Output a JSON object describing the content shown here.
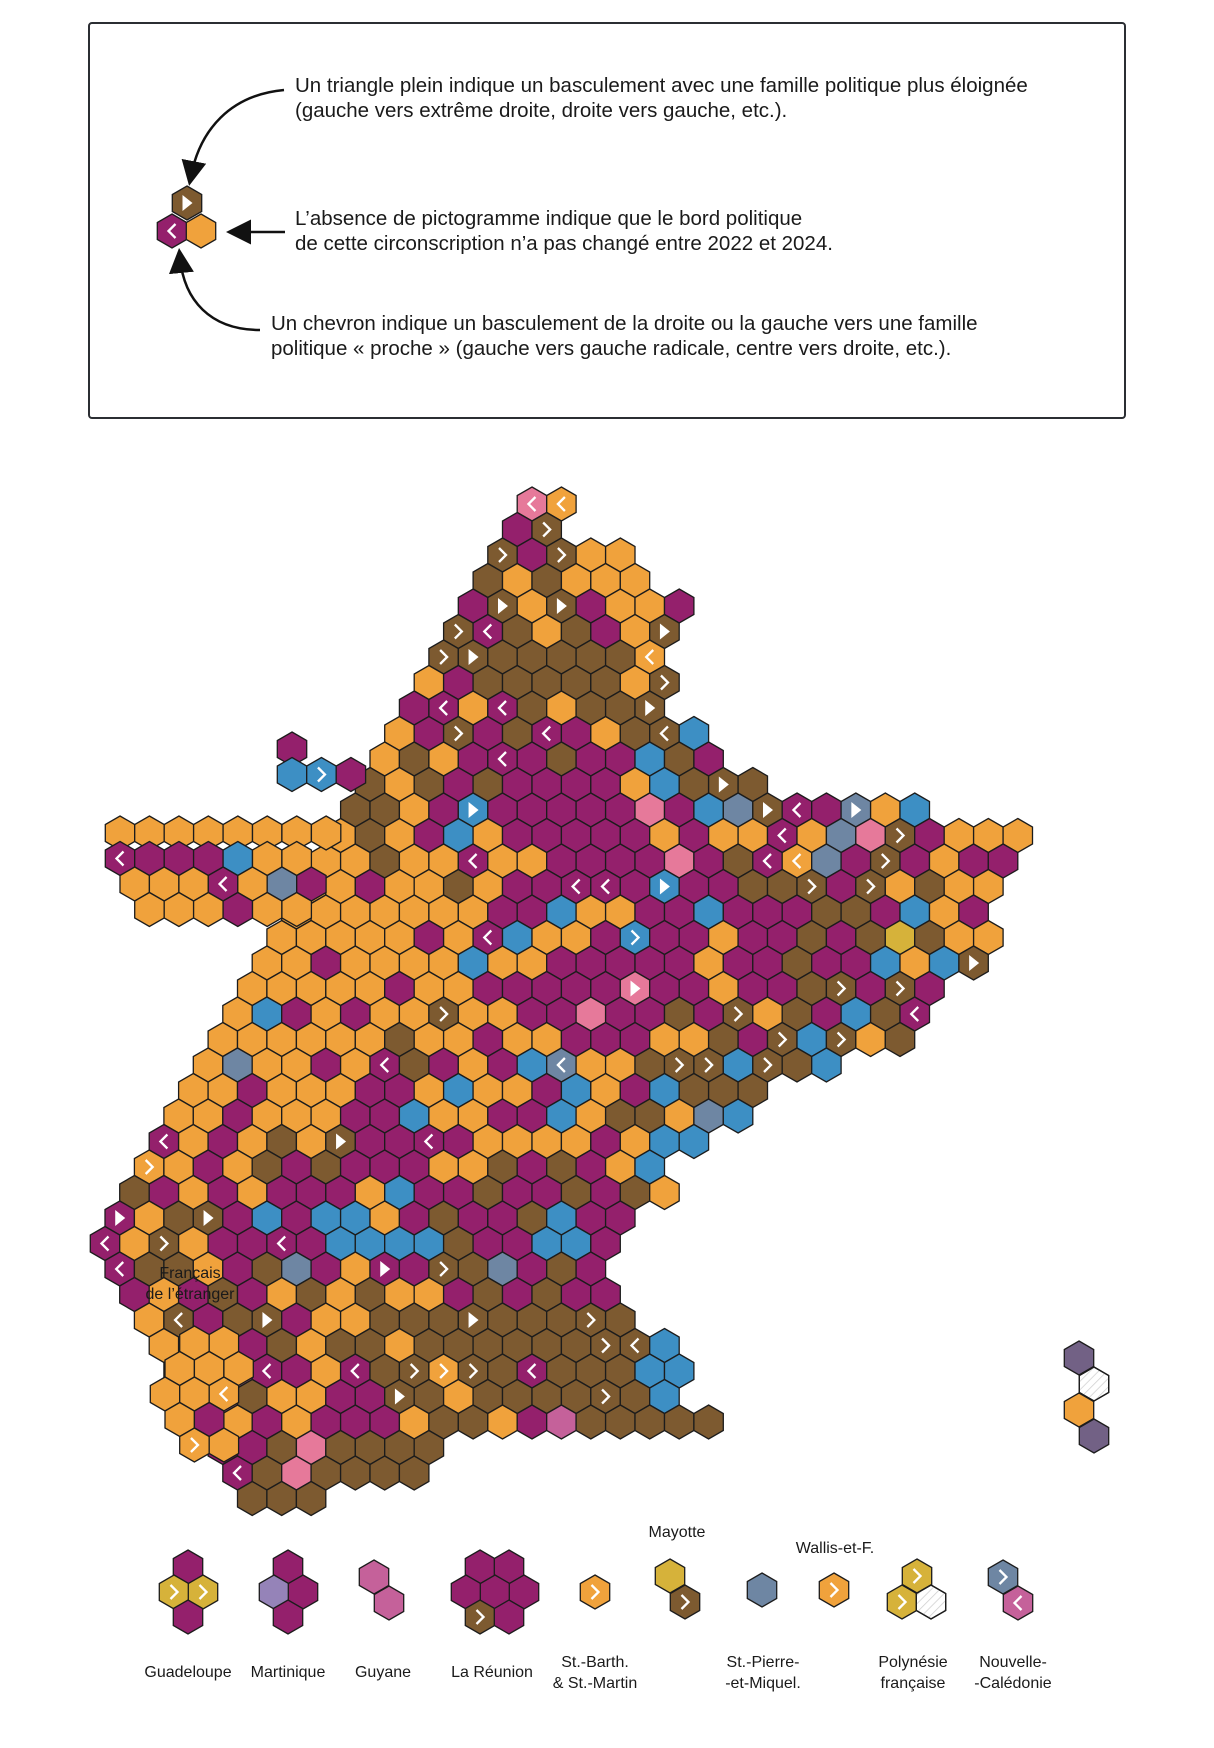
{
  "legend": {
    "triangle_text": [
      "Un triangle plein indique un basculement avec une famille politique plus éloignée",
      "(gauche vers extrême droite, droite vers gauche, etc.)."
    ],
    "none_text": [
      "L’absence de pictogramme indique que le bord politique",
      "de cette circonscription n’a pas changé entre 2022 et 2024."
    ],
    "chevron_text": [
      "Un chevron indique un basculement de la droite ou la gauche vers une famille",
      "politique « proche » (gauche vers gauche radicale, centre vers droite, etc.)."
    ]
  },
  "colors": {
    "orange": "#f0a23c",
    "purple": "#94206c",
    "brown": "#7d5a30",
    "blue": "#3d8fc4",
    "slate": "#6e86a3",
    "pink": "#e6799a",
    "mauve": "#c5619a",
    "gold": "#d6b23a",
    "violet": "#726185",
    "lavender": "#9583b8",
    "white": "#ffffff",
    "outline": "#1c1c1c"
  },
  "labels": {
    "abroad": [
      "Français",
      "de l’étranger"
    ],
    "guadeloupe": "Guadeloupe",
    "martinique": "Martinique",
    "guyane": "Guyane",
    "reunion": "La Réunion",
    "stbarth": [
      "St.-Barth.",
      "& St.-Martin"
    ],
    "mayotte": "Mayotte",
    "spm": [
      "St.-Pierre-",
      "-et-Miquel."
    ],
    "wallis": "Wallis-et-F.",
    "polynesie": [
      "Polynésie",
      "française"
    ],
    "caledonie": [
      "Nouvelle-",
      "-Calédonie"
    ]
  }
}
